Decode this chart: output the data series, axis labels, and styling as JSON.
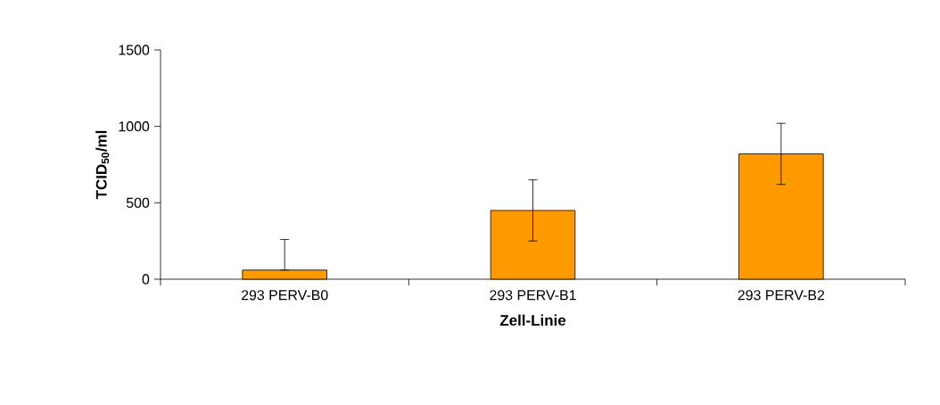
{
  "chart_data": {
    "type": "bar",
    "categories": [
      "293 PERV-B0",
      "293 PERV-B1",
      "293 PERV-B2"
    ],
    "values": [
      60,
      450,
      820
    ],
    "errors": [
      [
        60,
        260
      ],
      200,
      200
    ],
    "color": "#ff9900",
    "xlabel": "Zell-Linie",
    "ylabel": "TCID$_{50}$/ml",
    "ylim": [
      0,
      1500
    ],
    "yticks": [
      0,
      500,
      1000,
      1500
    ],
    "grid": false
  }
}
